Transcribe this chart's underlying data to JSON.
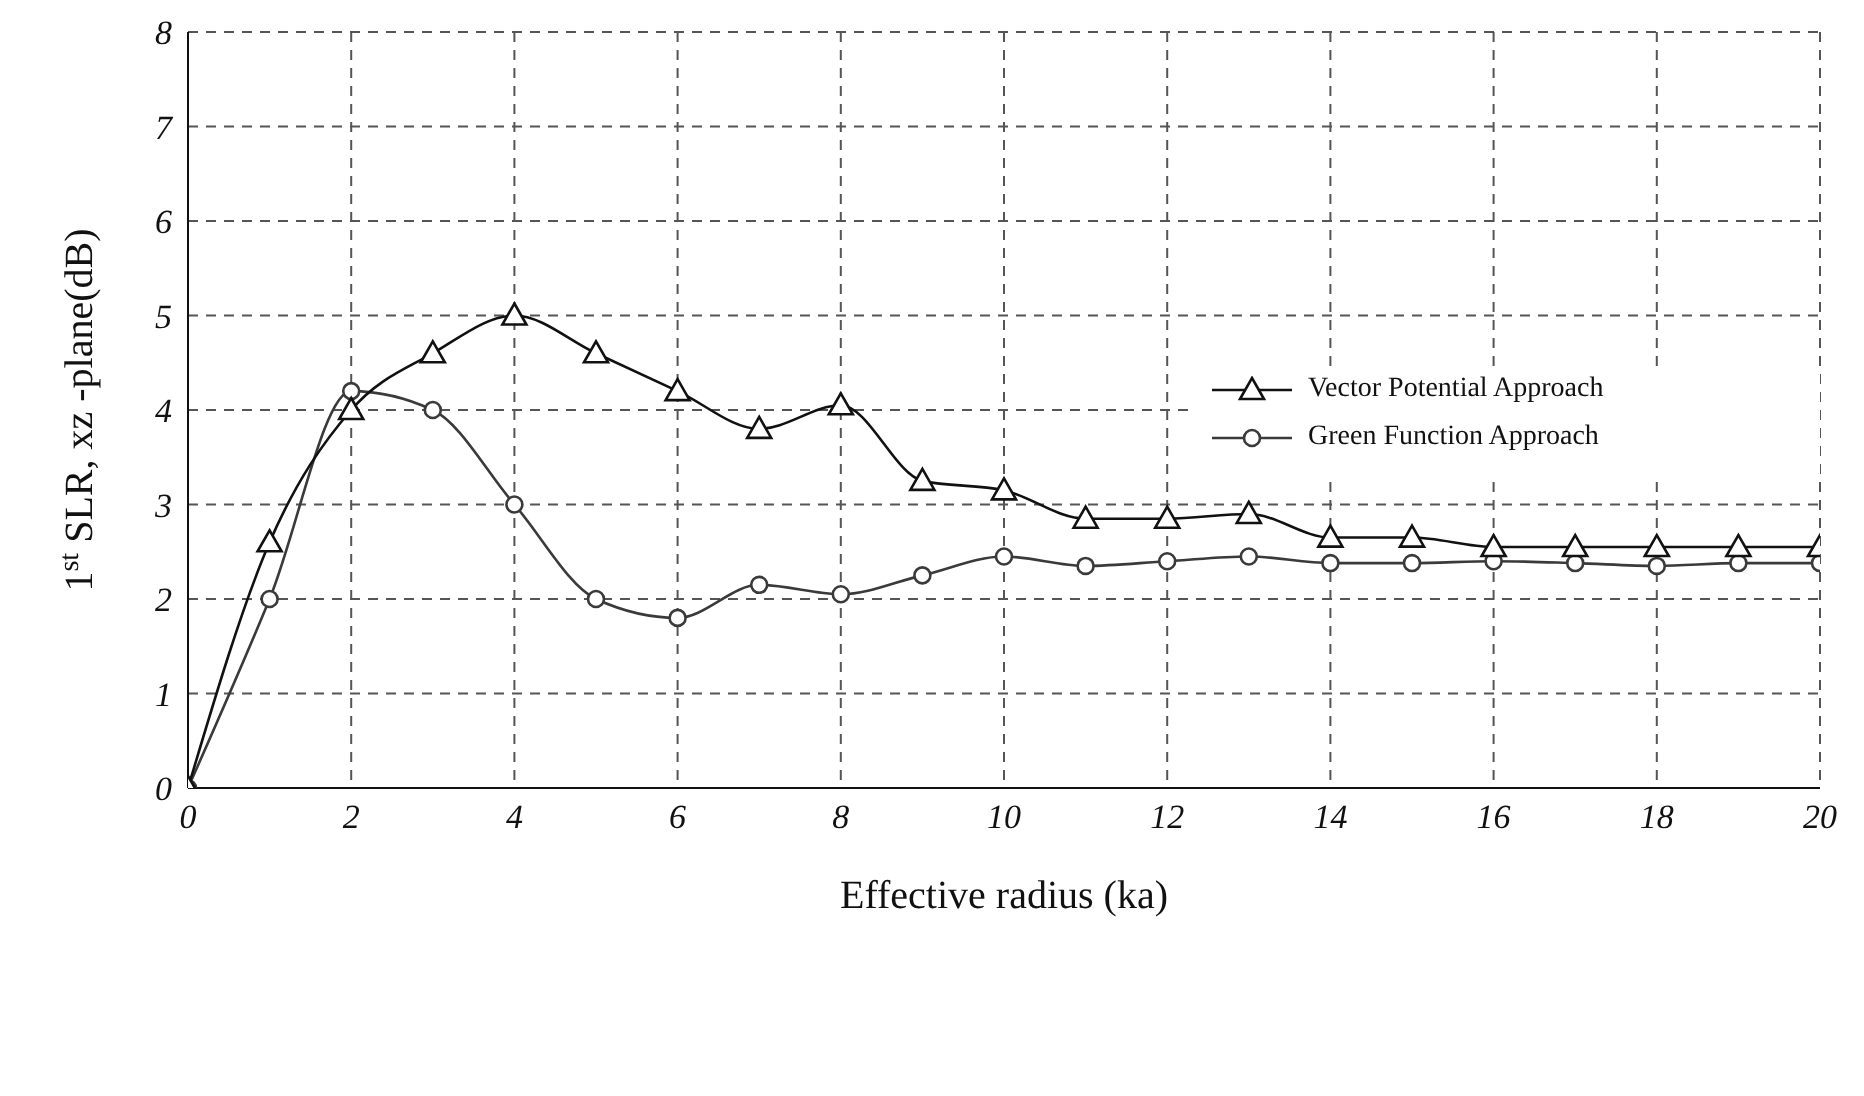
{
  "chart_data": {
    "type": "line",
    "xlabel": "Effective radius  (ka)",
    "ylabel": "1$^{st}$ SLR, xz -plane(dB)",
    "xlim": [
      0,
      20
    ],
    "xticks": [
      0,
      2,
      4,
      6,
      8,
      10,
      12,
      14,
      16,
      18,
      20
    ],
    "ylim": [
      0,
      8
    ],
    "yticks": [
      0,
      1,
      2,
      3,
      4,
      5,
      6,
      7,
      8
    ],
    "x": [
      0,
      1,
      2,
      3,
      4,
      5,
      6,
      7,
      8,
      9,
      10,
      11,
      12,
      13,
      14,
      15,
      16,
      17,
      18,
      19,
      20
    ],
    "grid": true,
    "legend": "right",
    "line_style": "solid",
    "series": [
      {
        "name": "Vector Potential Approach",
        "color": "#111111",
        "marker": "triangle",
        "values": [
          0,
          2.6,
          4.0,
          4.6,
          5.0,
          4.6,
          4.2,
          3.8,
          4.05,
          3.25,
          3.15,
          2.85,
          2.85,
          2.9,
          2.65,
          2.65,
          2.55,
          2.55,
          2.55,
          2.55,
          2.55
        ]
      },
      {
        "name": "Green Function Approach",
        "color": "#3a3a3a",
        "marker": "circle",
        "values": [
          0,
          2.0,
          4.2,
          4.0,
          3.0,
          2.0,
          1.8,
          2.15,
          2.05,
          2.25,
          2.45,
          2.35,
          2.4,
          2.45,
          2.38,
          2.38,
          2.4,
          2.38,
          2.35,
          2.38,
          2.38
        ]
      }
    ]
  }
}
